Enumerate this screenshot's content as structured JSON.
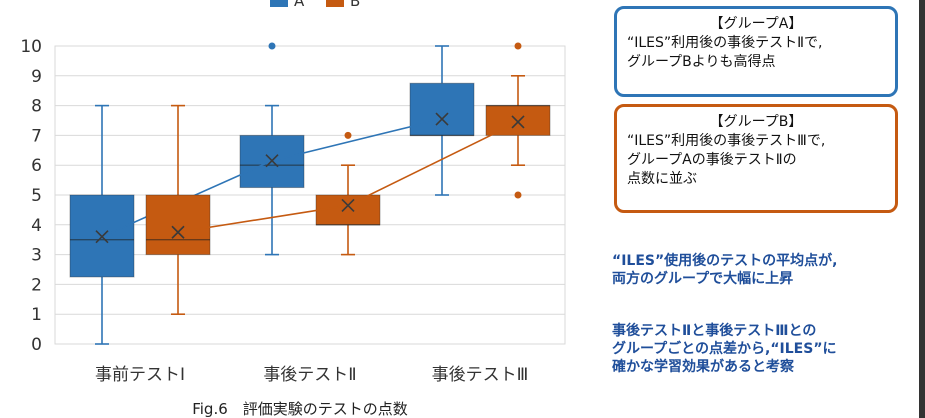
{
  "chart_data": {
    "type": "box",
    "ylim": [
      0,
      10
    ],
    "yticks": [
      0,
      1,
      2,
      3,
      4,
      5,
      6,
      7,
      8,
      9,
      10
    ],
    "categories": [
      "事前テストⅠ",
      "事後テストⅡ",
      "事後テストⅢ"
    ],
    "legend": {
      "position": "top"
    },
    "series": [
      {
        "name": "A",
        "color": "#2E75B6",
        "boxes": [
          {
            "min": 0,
            "q1": 2.25,
            "median": 3.5,
            "q3": 5,
            "max": 8,
            "mean": 3.6,
            "outliers": []
          },
          {
            "min": 3,
            "q1": 5.25,
            "median": 6,
            "q3": 7,
            "max": 8,
            "mean": 6.15,
            "outliers": [
              10
            ]
          },
          {
            "min": 5,
            "q1": 7,
            "median": 7,
            "q3": 8.75,
            "max": 10,
            "mean": 7.55,
            "outliers": []
          }
        ]
      },
      {
        "name": "B",
        "color": "#C55A11",
        "boxes": [
          {
            "min": 1,
            "q1": 3,
            "median": 3.5,
            "q3": 5,
            "max": 8,
            "mean": 3.75,
            "outliers": []
          },
          {
            "min": 3,
            "q1": 4,
            "median": 4,
            "q3": 5,
            "max": 6,
            "mean": 4.65,
            "outliers": [
              7
            ]
          },
          {
            "min": 6,
            "q1": 7,
            "median": 8,
            "q3": 8,
            "max": 9,
            "mean": 7.45,
            "outliers": [
              10,
              5
            ]
          }
        ]
      }
    ]
  },
  "caption": "Fig.6　評価実験のテストの点数",
  "notes": {
    "group_a": {
      "title": "【グループA】",
      "line1": "“ILES”利用後の事後テストⅡで,",
      "line2": "グループBよりも高得点",
      "color": "#2E75B6"
    },
    "group_b": {
      "title": "【グループB】",
      "line1": "“ILES”利用後の事後テストⅢで,",
      "line2": "グループAの事後テストⅡの",
      "line3": "点数に並ぶ",
      "color": "#C55A11"
    }
  },
  "summary": {
    "s1_line1": "“ILES”使用後のテストの平均点が,",
    "s1_line2": "両方のグループで大幅に上昇",
    "s2_line1": "事後テストⅡと事後テストⅢとの",
    "s2_line2": "グループごとの点差から,“ILES”に",
    "s2_line3": "確かな学習効果があると考察"
  }
}
